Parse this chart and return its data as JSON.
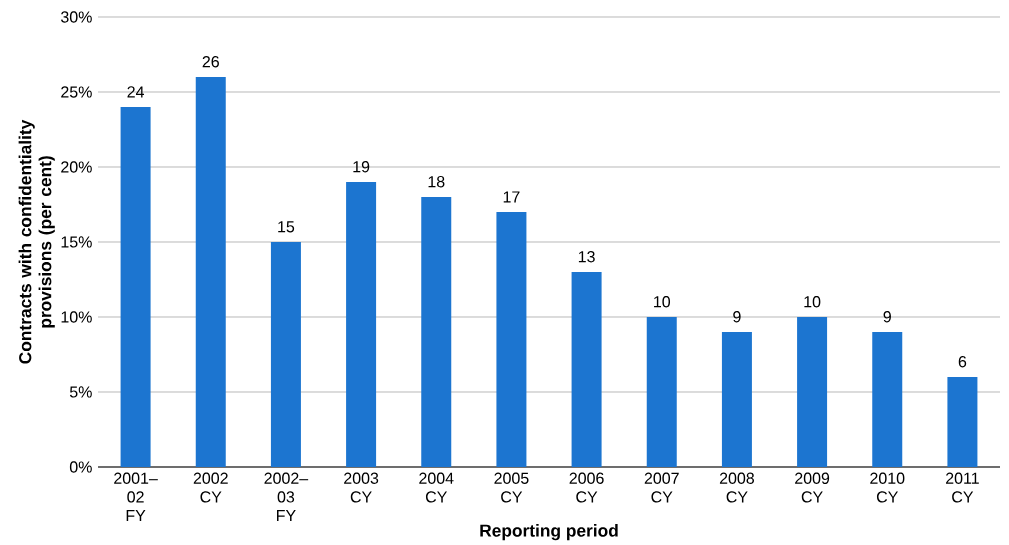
{
  "chart_data": {
    "type": "bar",
    "xlabel": "Reporting period",
    "ylabel": "Contracts with confidentiality provisions (per cent)",
    "categories": [
      "2001–02 FY",
      "2002 CY",
      "2002–03 FY",
      "2003 CY",
      "2004 CY",
      "2005 CY",
      "2006 CY",
      "2007 CY",
      "2008 CY",
      "2009 CY",
      "2010 CY",
      "2011 CY"
    ],
    "values": [
      24,
      26,
      15,
      19,
      18,
      17,
      13,
      10,
      9,
      10,
      9,
      6
    ],
    "color": "#1c75d0",
    "ylim": [
      0,
      30
    ],
    "yticks": [
      {
        "value": 0,
        "label": "0%"
      },
      {
        "value": 5,
        "label": "5%"
      },
      {
        "value": 10,
        "label": "10%"
      },
      {
        "value": 15,
        "label": "15%"
      },
      {
        "value": 20,
        "label": "20%"
      },
      {
        "value": 25,
        "label": "25%"
      },
      {
        "value": 30,
        "label": "30%"
      }
    ],
    "grid": "y",
    "data_labels": true
  }
}
